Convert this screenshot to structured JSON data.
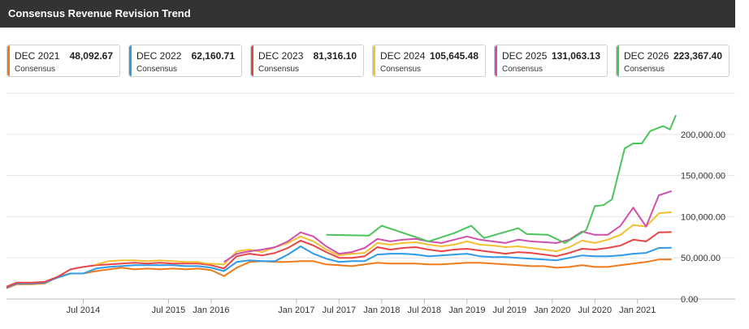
{
  "header": {
    "title": "Consensus Revenue Revision Trend"
  },
  "legend": [
    {
      "name": "DEC 2021",
      "value": "48,092.67",
      "sub": "Consensus",
      "color": "#f07a1a"
    },
    {
      "name": "DEC 2022",
      "value": "62,160.71",
      "sub": "Consensus",
      "color": "#2d9be8"
    },
    {
      "name": "DEC 2023",
      "value": "81,316.10",
      "sub": "Consensus",
      "color": "#e84545"
    },
    {
      "name": "DEC 2024",
      "value": "105,645.48",
      "sub": "Consensus",
      "color": "#f4c032"
    },
    {
      "name": "DEC 2025",
      "value": "131,063.13",
      "sub": "Consensus",
      "color": "#cf4fae"
    },
    {
      "name": "DEC 2026",
      "value": "223,367.40",
      "sub": "Consensus",
      "color": "#4cc45c"
    }
  ],
  "chart_data": {
    "type": "line",
    "title": "Consensus Revenue Revision Trend",
    "xlim": [
      2013.6,
      2021.45
    ],
    "ylim": [
      0,
      250000
    ],
    "grid": "horizontal",
    "y_ticks": [
      "0.00",
      "50,000.00",
      "100,000.00",
      "150,000.00",
      "200,000.00"
    ],
    "y_tick_values": [
      0,
      50000,
      100000,
      150000,
      200000
    ],
    "x_ticks": [
      {
        "label": "Jul 2014",
        "x": 2014.5
      },
      {
        "label": "Jul 2015",
        "x": 2015.5
      },
      {
        "label": "Jan 2016",
        "x": 2016.0
      },
      {
        "label": "Jan 2017",
        "x": 2017.0
      },
      {
        "label": "Jul 2017",
        "x": 2017.5
      },
      {
        "label": "Jan 2018",
        "x": 2018.0
      },
      {
        "label": "Jul 2018",
        "x": 2018.5
      },
      {
        "label": "Jan 2019",
        "x": 2019.0
      },
      {
        "label": "Jul 2019",
        "x": 2019.5
      },
      {
        "label": "Jan 2020",
        "x": 2020.0
      },
      {
        "label": "Jul 2020",
        "x": 2020.5
      },
      {
        "label": "Jan 2021",
        "x": 2021.0
      }
    ],
    "series": [
      {
        "name": "DEC 2021",
        "color": "#f07a1a",
        "points": [
          [
            2013.6,
            13000
          ],
          [
            2013.72,
            18000
          ],
          [
            2013.9,
            18000
          ],
          [
            2014.05,
            19000
          ],
          [
            2014.2,
            27000
          ],
          [
            2014.35,
            31000
          ],
          [
            2014.5,
            31000
          ],
          [
            2014.65,
            34000
          ],
          [
            2014.8,
            36000
          ],
          [
            2014.95,
            38000
          ],
          [
            2015.1,
            36000
          ],
          [
            2015.25,
            37000
          ],
          [
            2015.4,
            36000
          ],
          [
            2015.55,
            37000
          ],
          [
            2015.7,
            36000
          ],
          [
            2015.85,
            37000
          ],
          [
            2016.0,
            35000
          ],
          [
            2016.15,
            28000
          ],
          [
            2016.3,
            38000
          ],
          [
            2016.45,
            45000
          ],
          [
            2016.6,
            46000
          ],
          [
            2016.75,
            45000
          ],
          [
            2016.9,
            45000
          ],
          [
            2017.05,
            46000
          ],
          [
            2017.2,
            46000
          ],
          [
            2017.35,
            42000
          ],
          [
            2017.5,
            41000
          ],
          [
            2017.65,
            40000
          ],
          [
            2017.8,
            42000
          ],
          [
            2017.95,
            44000
          ],
          [
            2018.1,
            43000
          ],
          [
            2018.25,
            43000
          ],
          [
            2018.4,
            43000
          ],
          [
            2018.55,
            42000
          ],
          [
            2018.7,
            42000
          ],
          [
            2018.85,
            43000
          ],
          [
            2019.0,
            44000
          ],
          [
            2019.15,
            44000
          ],
          [
            2019.3,
            43000
          ],
          [
            2019.45,
            42000
          ],
          [
            2019.6,
            41000
          ],
          [
            2019.75,
            40000
          ],
          [
            2019.9,
            40000
          ],
          [
            2020.05,
            38000
          ],
          [
            2020.2,
            39000
          ],
          [
            2020.35,
            41000
          ],
          [
            2020.5,
            39000
          ],
          [
            2020.65,
            39000
          ],
          [
            2020.8,
            41000
          ],
          [
            2020.95,
            43000
          ],
          [
            2021.1,
            45000
          ],
          [
            2021.25,
            48000
          ],
          [
            2021.4,
            48093
          ]
        ]
      },
      {
        "name": "DEC 2022",
        "color": "#2d9be8",
        "points": [
          [
            2013.6,
            14000
          ],
          [
            2013.72,
            19000
          ],
          [
            2013.9,
            19000
          ],
          [
            2014.05,
            20000
          ],
          [
            2014.2,
            26000
          ],
          [
            2014.35,
            31000
          ],
          [
            2014.5,
            31000
          ],
          [
            2014.65,
            37000
          ],
          [
            2014.8,
            39000
          ],
          [
            2014.95,
            40000
          ],
          [
            2015.1,
            41000
          ],
          [
            2015.25,
            41000
          ],
          [
            2015.4,
            41000
          ],
          [
            2015.55,
            41000
          ],
          [
            2015.7,
            40000
          ],
          [
            2015.85,
            40000
          ],
          [
            2016.0,
            38000
          ],
          [
            2016.15,
            34000
          ],
          [
            2016.3,
            45000
          ],
          [
            2016.45,
            47000
          ],
          [
            2016.6,
            46000
          ],
          [
            2016.75,
            46000
          ],
          [
            2016.9,
            54000
          ],
          [
            2017.05,
            64000
          ],
          [
            2017.2,
            55000
          ],
          [
            2017.35,
            49000
          ],
          [
            2017.5,
            45000
          ],
          [
            2017.65,
            46000
          ],
          [
            2017.8,
            46000
          ],
          [
            2017.95,
            54000
          ],
          [
            2018.1,
            55000
          ],
          [
            2018.25,
            55000
          ],
          [
            2018.4,
            54000
          ],
          [
            2018.55,
            52000
          ],
          [
            2018.7,
            53000
          ],
          [
            2018.85,
            54000
          ],
          [
            2019.0,
            55000
          ],
          [
            2019.15,
            52000
          ],
          [
            2019.3,
            51000
          ],
          [
            2019.45,
            51000
          ],
          [
            2019.6,
            50000
          ],
          [
            2019.75,
            49000
          ],
          [
            2019.9,
            48000
          ],
          [
            2020.05,
            47000
          ],
          [
            2020.2,
            50000
          ],
          [
            2020.35,
            53000
          ],
          [
            2020.5,
            52000
          ],
          [
            2020.65,
            52000
          ],
          [
            2020.8,
            53000
          ],
          [
            2020.95,
            55000
          ],
          [
            2021.1,
            56000
          ],
          [
            2021.25,
            62000
          ],
          [
            2021.4,
            62161
          ]
        ]
      },
      {
        "name": "DEC 2023",
        "color": "#e84545",
        "points": [
          [
            2013.6,
            15000
          ],
          [
            2013.72,
            20000
          ],
          [
            2013.9,
            20000
          ],
          [
            2014.05,
            21000
          ],
          [
            2014.2,
            27000
          ],
          [
            2014.35,
            36000
          ],
          [
            2014.5,
            39000
          ],
          [
            2014.65,
            41000
          ],
          [
            2014.8,
            42000
          ],
          [
            2014.95,
            43000
          ],
          [
            2015.1,
            44000
          ],
          [
            2015.25,
            43000
          ],
          [
            2015.4,
            44000
          ],
          [
            2015.55,
            43000
          ],
          [
            2015.7,
            43000
          ],
          [
            2015.85,
            43000
          ],
          [
            2016.0,
            41000
          ],
          [
            2016.15,
            37000
          ],
          [
            2016.3,
            52000
          ],
          [
            2016.45,
            55000
          ],
          [
            2016.6,
            53000
          ],
          [
            2016.75,
            56000
          ],
          [
            2016.9,
            62000
          ],
          [
            2017.05,
            71000
          ],
          [
            2017.2,
            65000
          ],
          [
            2017.35,
            57000
          ],
          [
            2017.5,
            50000
          ],
          [
            2017.65,
            50000
          ],
          [
            2017.8,
            52000
          ],
          [
            2017.95,
            63000
          ],
          [
            2018.1,
            60000
          ],
          [
            2018.25,
            62000
          ],
          [
            2018.4,
            63000
          ],
          [
            2018.55,
            60000
          ],
          [
            2018.7,
            58000
          ],
          [
            2018.85,
            60000
          ],
          [
            2019.0,
            61000
          ],
          [
            2019.15,
            59000
          ],
          [
            2019.3,
            57000
          ],
          [
            2019.45,
            55000
          ],
          [
            2019.6,
            57000
          ],
          [
            2019.75,
            56000
          ],
          [
            2019.9,
            54000
          ],
          [
            2020.05,
            52000
          ],
          [
            2020.2,
            56000
          ],
          [
            2020.35,
            61000
          ],
          [
            2020.5,
            60000
          ],
          [
            2020.65,
            62000
          ],
          [
            2020.8,
            65000
          ],
          [
            2020.95,
            72000
          ],
          [
            2021.1,
            70000
          ],
          [
            2021.25,
            81000
          ],
          [
            2021.4,
            81316
          ]
        ]
      },
      {
        "name": "DEC 2024",
        "color": "#f4c032",
        "points": [
          [
            2014.65,
            42000
          ],
          [
            2014.8,
            46000
          ],
          [
            2014.95,
            47000
          ],
          [
            2015.1,
            47000
          ],
          [
            2015.25,
            46000
          ],
          [
            2015.4,
            47000
          ],
          [
            2015.55,
            46000
          ],
          [
            2015.7,
            45000
          ],
          [
            2015.85,
            45000
          ],
          [
            2015.95,
            43000
          ],
          [
            2016.15,
            42000
          ],
          [
            2016.3,
            58000
          ],
          [
            2016.45,
            60000
          ],
          [
            2016.6,
            57000
          ],
          [
            2016.75,
            63000
          ],
          [
            2016.9,
            68000
          ],
          [
            2017.05,
            76000
          ],
          [
            2017.2,
            70000
          ],
          [
            2017.35,
            60000
          ],
          [
            2017.5,
            53000
          ],
          [
            2017.65,
            55000
          ],
          [
            2017.8,
            56000
          ],
          [
            2017.95,
            68000
          ],
          [
            2018.1,
            66000
          ],
          [
            2018.25,
            68000
          ],
          [
            2018.4,
            69000
          ],
          [
            2018.55,
            66000
          ],
          [
            2018.7,
            64000
          ],
          [
            2018.85,
            66000
          ],
          [
            2019.0,
            70000
          ],
          [
            2019.15,
            66000
          ],
          [
            2019.3,
            65000
          ],
          [
            2019.45,
            63000
          ],
          [
            2019.6,
            64000
          ],
          [
            2019.75,
            62000
          ],
          [
            2019.9,
            60000
          ],
          [
            2020.05,
            58000
          ],
          [
            2020.2,
            63000
          ],
          [
            2020.35,
            71000
          ],
          [
            2020.5,
            68000
          ],
          [
            2020.65,
            72000
          ],
          [
            2020.8,
            78000
          ],
          [
            2020.95,
            90000
          ],
          [
            2021.1,
            88000
          ],
          [
            2021.25,
            104000
          ],
          [
            2021.4,
            105645
          ]
        ]
      },
      {
        "name": "DEC 2025",
        "color": "#cf4fae",
        "points": [
          [
            2016.15,
            45000
          ],
          [
            2016.3,
            55000
          ],
          [
            2016.45,
            58000
          ],
          [
            2016.6,
            60000
          ],
          [
            2016.75,
            63000
          ],
          [
            2016.9,
            70000
          ],
          [
            2017.05,
            81000
          ],
          [
            2017.2,
            76000
          ],
          [
            2017.35,
            64000
          ],
          [
            2017.5,
            55000
          ],
          [
            2017.65,
            57000
          ],
          [
            2017.8,
            62000
          ],
          [
            2017.95,
            73000
          ],
          [
            2018.1,
            70000
          ],
          [
            2018.25,
            72000
          ],
          [
            2018.4,
            73000
          ],
          [
            2018.55,
            70000
          ],
          [
            2018.7,
            68000
          ],
          [
            2018.85,
            72000
          ],
          [
            2019.0,
            76000
          ],
          [
            2019.15,
            72000
          ],
          [
            2019.3,
            70000
          ],
          [
            2019.45,
            68000
          ],
          [
            2019.6,
            72000
          ],
          [
            2019.75,
            70000
          ],
          [
            2019.9,
            69000
          ],
          [
            2020.05,
            68000
          ],
          [
            2020.2,
            72000
          ],
          [
            2020.35,
            82000
          ],
          [
            2020.5,
            78000
          ],
          [
            2020.65,
            78000
          ],
          [
            2020.8,
            89000
          ],
          [
            2020.95,
            111000
          ],
          [
            2021.1,
            88000
          ],
          [
            2021.25,
            126000
          ],
          [
            2021.4,
            131063
          ]
        ]
      },
      {
        "name": "DEC 2026",
        "color": "#4cc45c",
        "points": [
          [
            2017.35,
            78000
          ],
          [
            2017.85,
            77000
          ],
          [
            2018.0,
            89000
          ],
          [
            2018.55,
            70000
          ],
          [
            2018.85,
            80000
          ],
          [
            2019.05,
            89000
          ],
          [
            2019.2,
            74000
          ],
          [
            2019.6,
            86000
          ],
          [
            2019.7,
            79000
          ],
          [
            2019.95,
            78000
          ],
          [
            2020.15,
            68000
          ],
          [
            2020.4,
            84000
          ],
          [
            2020.5,
            113000
          ],
          [
            2020.6,
            114000
          ],
          [
            2020.7,
            121000
          ],
          [
            2020.85,
            183000
          ],
          [
            2020.95,
            189000
          ],
          [
            2021.05,
            189000
          ],
          [
            2021.15,
            204000
          ],
          [
            2021.3,
            210000
          ],
          [
            2021.38,
            206000
          ],
          [
            2021.45,
            223367
          ]
        ]
      }
    ]
  }
}
